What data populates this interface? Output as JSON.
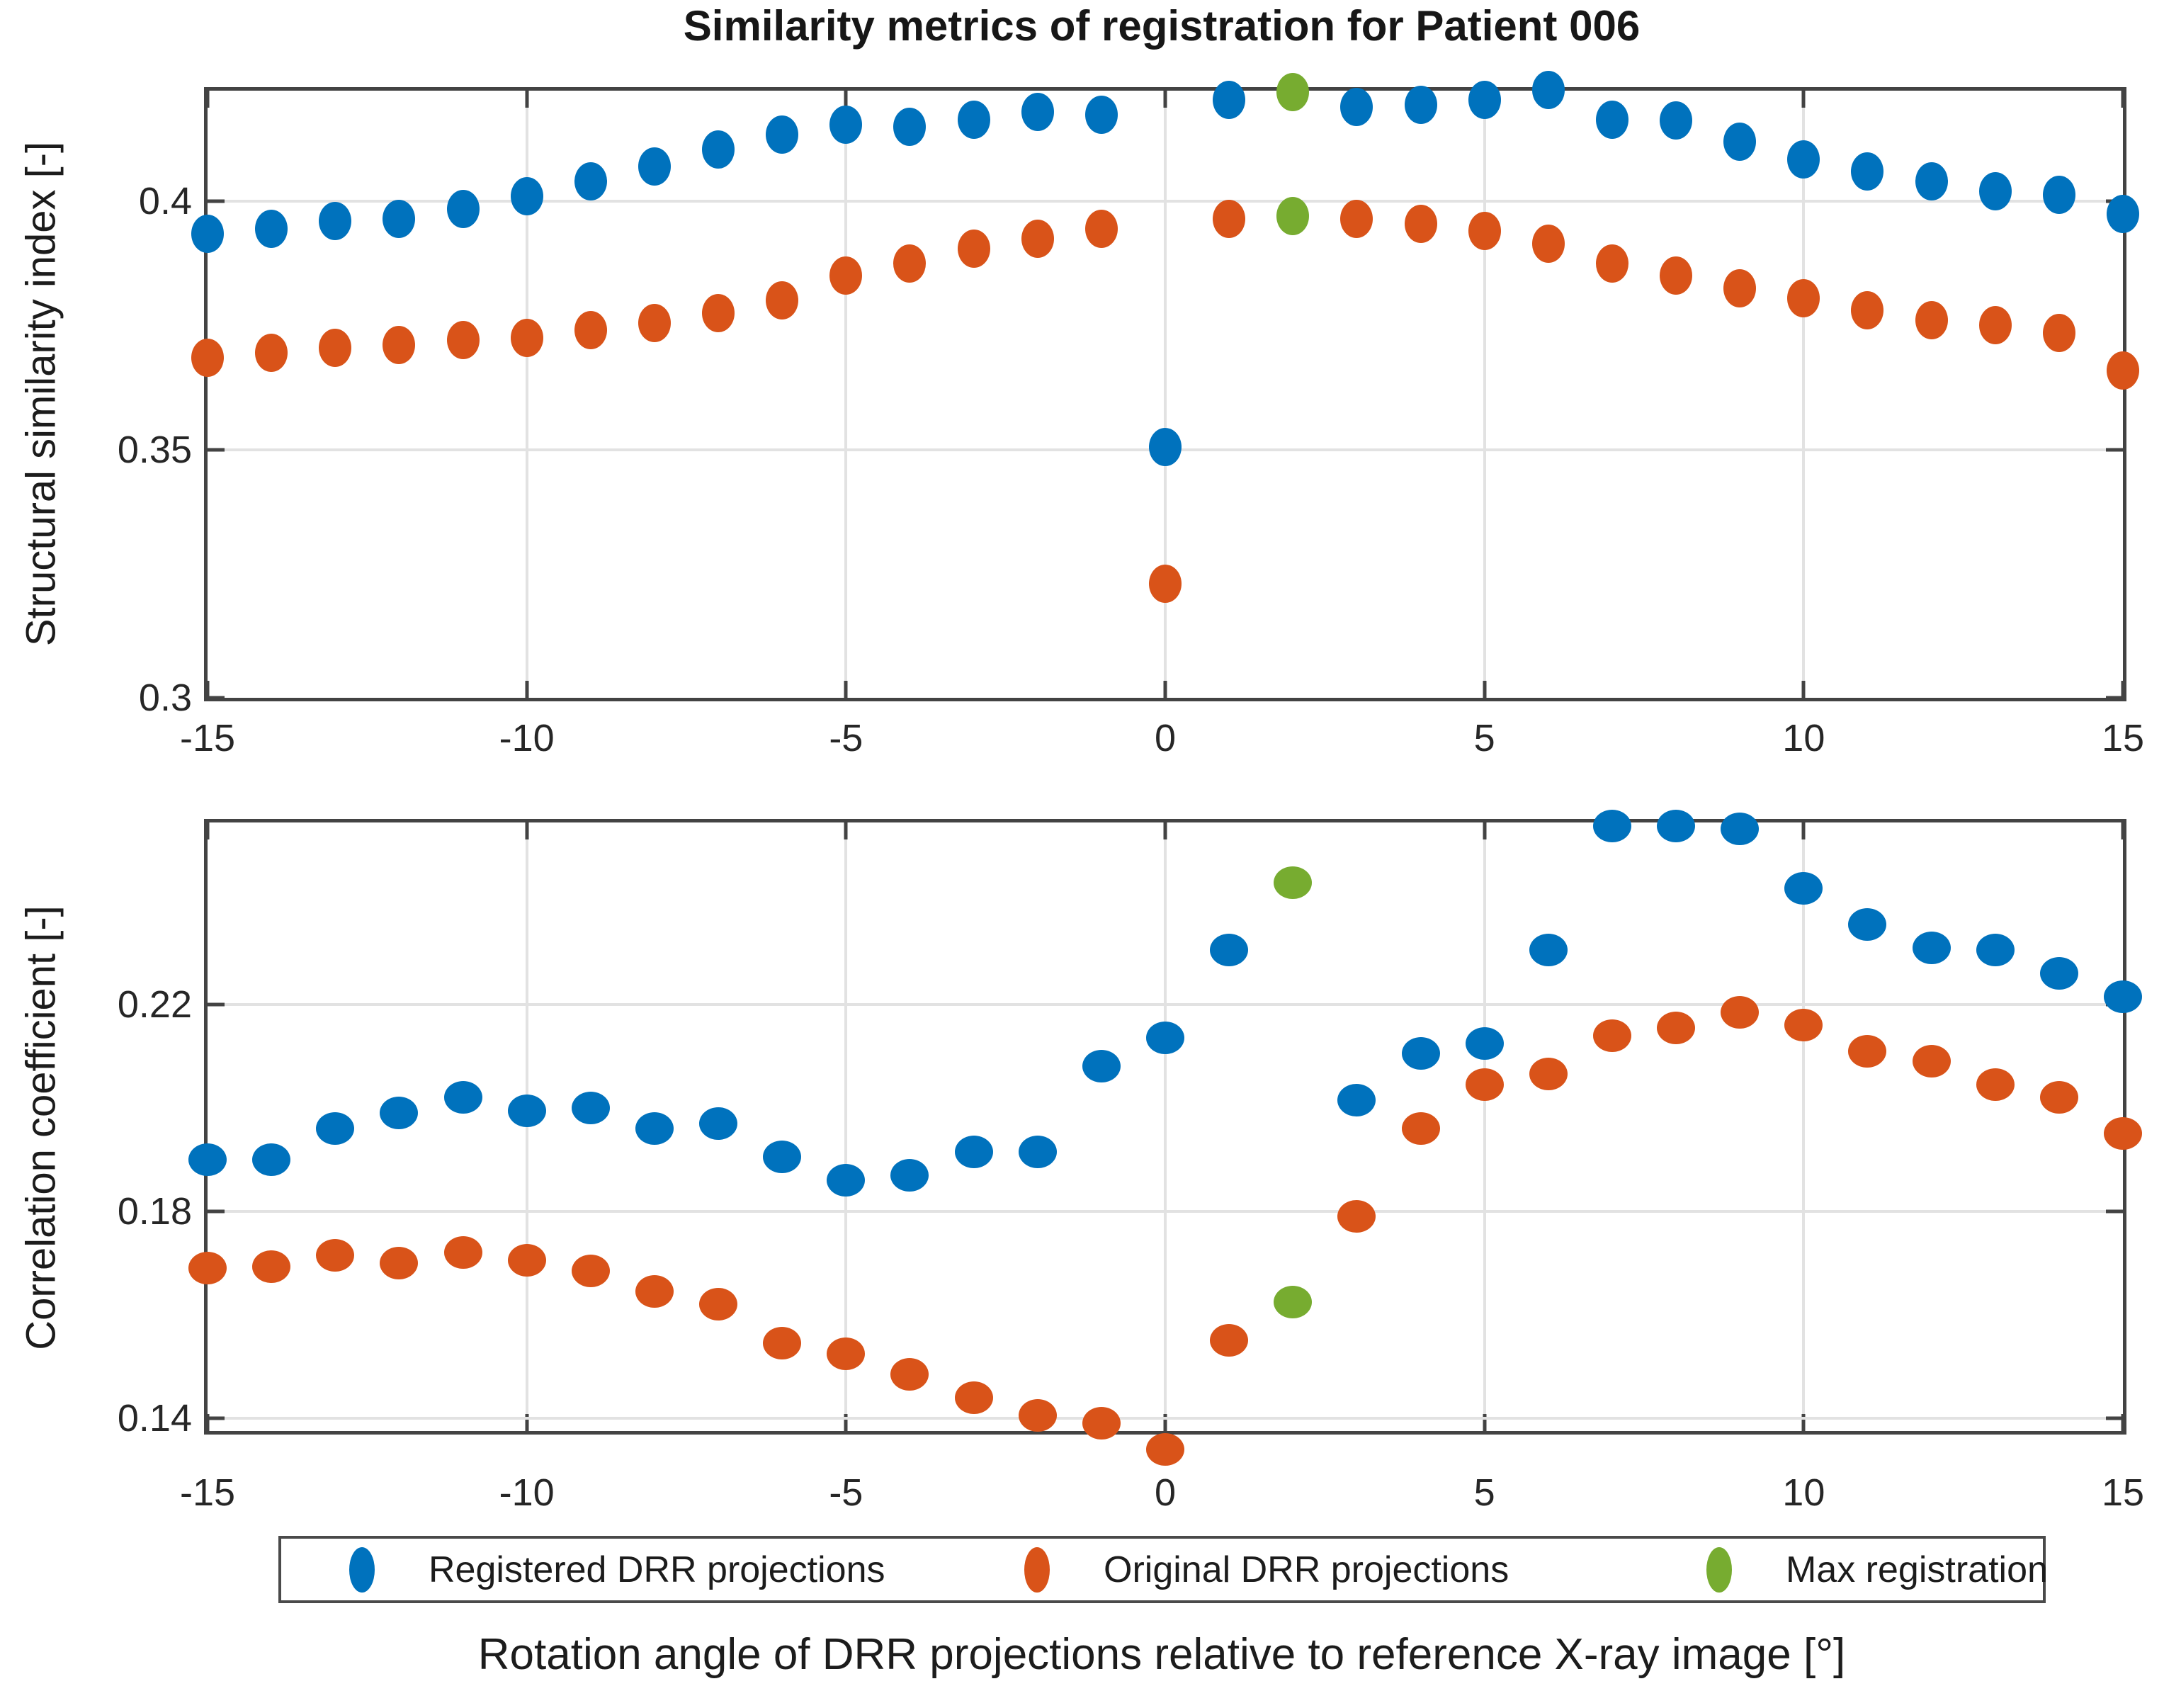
{
  "title": "Similarity metrics of registration for Patient 006",
  "xlabel": "Rotation angle of DRR projections relative to reference X-ray image [°]",
  "legend": {
    "items": [
      {
        "label": "Registered DRR projections",
        "color": "#0072BD"
      },
      {
        "label": "Original DRR projections",
        "color": "#D95319"
      },
      {
        "label": "Max registration",
        "color": "#77AC30"
      }
    ]
  },
  "colors": {
    "registered_blue": "#0072BD",
    "original_orange": "#D95319",
    "max_registration_green": "#77AC30",
    "axis": "#434343",
    "grid": "#e2e2e2"
  },
  "chart_data": [
    {
      "type": "scatter",
      "title": "Similarity metrics of registration for Patient 006",
      "xlabel": "",
      "ylabel": "Structural similarity index [-]",
      "xlim": [
        -15,
        15
      ],
      "ylim": [
        0.3,
        0.4223
      ],
      "xticks": [
        -15,
        -10,
        -5,
        0,
        5,
        10,
        15
      ],
      "xtick_labels": [
        "-15",
        "-10",
        "-5",
        "0",
        "5",
        "10",
        "15"
      ],
      "yticks": [
        0.3,
        0.35,
        0.4
      ],
      "ytick_labels": [
        "0.3",
        "0.35",
        "0.4"
      ],
      "grid": true,
      "legend_position": "below-figure",
      "series": [
        {
          "name": "Registered DRR projections",
          "color": "#0072BD",
          "x": [
            -15,
            -14,
            -13,
            -12,
            -11,
            -10,
            -9,
            -8,
            -7,
            -6,
            -5,
            -4,
            -3,
            -2,
            -1,
            0,
            1,
            3,
            4,
            5,
            6,
            7,
            8,
            9,
            10,
            11,
            12,
            13,
            14,
            15
          ],
          "y": [
            0.3935,
            0.3945,
            0.396,
            0.3965,
            0.3985,
            0.401,
            0.404,
            0.407,
            0.4105,
            0.4135,
            0.4155,
            0.415,
            0.4165,
            0.418,
            0.4175,
            0.3505,
            0.4205,
            0.419,
            0.4195,
            0.4205,
            0.4225,
            0.4165,
            0.4163,
            0.412,
            0.4085,
            0.406,
            0.404,
            0.402,
            0.4013,
            0.3975
          ]
        },
        {
          "name": "Original DRR projections",
          "color": "#D95319",
          "x": [
            -15,
            -14,
            -13,
            -12,
            -11,
            -10,
            -9,
            -8,
            -7,
            -6,
            -5,
            -4,
            -3,
            -2,
            -1,
            0,
            1,
            3,
            4,
            5,
            6,
            7,
            8,
            9,
            10,
            11,
            12,
            13,
            14,
            15
          ],
          "y": [
            0.3685,
            0.3695,
            0.3705,
            0.371,
            0.372,
            0.3725,
            0.374,
            0.3755,
            0.3775,
            0.38,
            0.385,
            0.3875,
            0.3905,
            0.3925,
            0.3945,
            0.323,
            0.3965,
            0.3965,
            0.3955,
            0.394,
            0.3915,
            0.3875,
            0.385,
            0.3825,
            0.3805,
            0.378,
            0.376,
            0.375,
            0.3735,
            0.366
          ]
        },
        {
          "name": "Max registration",
          "color": "#77AC30",
          "x": [
            2,
            2
          ],
          "y": [
            0.422,
            0.397
          ]
        }
      ]
    },
    {
      "type": "scatter",
      "title": "",
      "xlabel": "Rotation angle of DRR projections relative to reference X-ray image [°]",
      "ylabel": "Correlation coefficient [-]",
      "xlim": [
        -15,
        15
      ],
      "ylim": [
        0.1375,
        0.2552
      ],
      "xticks": [
        -15,
        -10,
        -5,
        0,
        5,
        10,
        15
      ],
      "xtick_labels": [
        "-15",
        "-10",
        "-5",
        "0",
        "5",
        "10",
        "15"
      ],
      "yticks": [
        0.14,
        0.18,
        0.22
      ],
      "ytick_labels": [
        "0.14",
        "0.18",
        "0.22"
      ],
      "grid": true,
      "legend_position": "below-figure",
      "series": [
        {
          "name": "Registered DRR projections",
          "color": "#0072BD",
          "x": [
            -15,
            -14,
            -13,
            -12,
            -11,
            -10,
            -9,
            -8,
            -7,
            -6,
            -5,
            -4,
            -3,
            -2,
            -1,
            0,
            1,
            3,
            4,
            5,
            6,
            7,
            8,
            9,
            10,
            11,
            12,
            13,
            14,
            15
          ],
          "y": [
            0.19,
            0.19,
            0.196,
            0.199,
            0.202,
            0.1995,
            0.2,
            0.196,
            0.197,
            0.1905,
            0.186,
            0.187,
            0.1915,
            0.1915,
            0.208,
            0.2135,
            0.2305,
            0.2015,
            0.2105,
            0.2125,
            0.2305,
            0.2545,
            0.2545,
            0.254,
            0.2425,
            0.2355,
            0.231,
            0.2305,
            0.226,
            0.2215
          ]
        },
        {
          "name": "Original DRR projections",
          "color": "#D95319",
          "x": [
            -15,
            -14,
            -13,
            -12,
            -11,
            -10,
            -9,
            -8,
            -7,
            -6,
            -5,
            -4,
            -3,
            -2,
            -1,
            0,
            1,
            3,
            4,
            5,
            6,
            7,
            8,
            9,
            10,
            11,
            12,
            13,
            14,
            15
          ],
          "y": [
            0.169,
            0.1693,
            0.1715,
            0.17,
            0.172,
            0.1705,
            0.1685,
            0.1645,
            0.162,
            0.1545,
            0.1525,
            0.1485,
            0.144,
            0.1405,
            0.139,
            0.134,
            0.155,
            0.179,
            0.196,
            0.2045,
            0.2065,
            0.214,
            0.2155,
            0.2185,
            0.216,
            0.211,
            0.209,
            0.2045,
            0.202,
            0.195
          ]
        },
        {
          "name": "Max registration",
          "color": "#77AC30",
          "x": [
            2,
            2
          ],
          "y": [
            0.2435,
            0.1625
          ]
        }
      ]
    }
  ]
}
